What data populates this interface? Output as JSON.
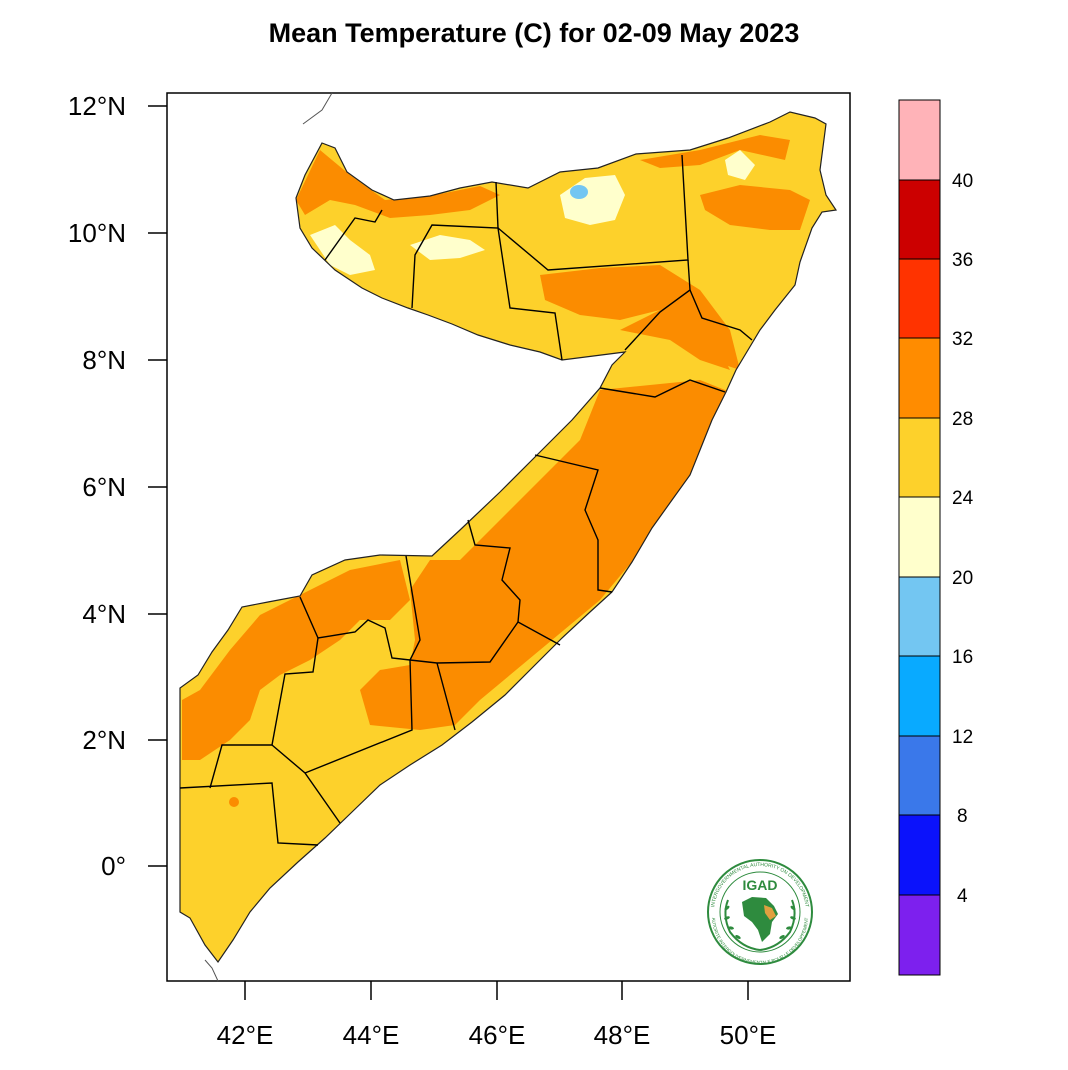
{
  "title": "Mean Temperature (C) for 02-09 May 2023",
  "map": {
    "lat_ticks": [
      "12°N",
      "10°N",
      "8°N",
      "6°N",
      "4°N",
      "2°N",
      "0°"
    ],
    "lon_ticks": [
      "42°E",
      "44°E",
      "46°E",
      "48°E",
      "50°E"
    ]
  },
  "colorbar": {
    "labels": [
      "40",
      "36",
      "32",
      "28",
      "24",
      "20",
      "16",
      "12",
      "8",
      "4"
    ],
    "colors": [
      "#ffb3b8",
      "#cc0000",
      "#ff3300",
      "#ff8c00",
      "#fdd12b",
      "#ffffcc",
      "#73c6f2",
      "#09aaff",
      "#3a78ea",
      "#0b12fb",
      "#7d20ee"
    ]
  },
  "logo": {
    "text": "IGAD",
    "ring_text_top": "INTERGOVERNMENTAL AUTHORITY ON DEVELOPMENT",
    "ring_text_bottom": "AUTORITE INTERGOUVERNEMENTALE POUR LE DEVELOPPEMENT"
  },
  "colors": {
    "orange": "#fb8c00",
    "yellow": "#fdd12b",
    "pale": "#ffffcc",
    "blue": "#73c6f2"
  }
}
